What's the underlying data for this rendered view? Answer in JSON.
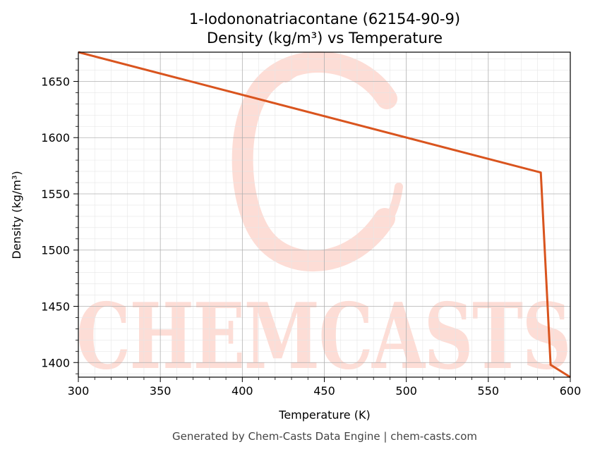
{
  "chart_data": {
    "type": "line",
    "title": "1-Iodononatriacontane (62154-90-9)",
    "subtitle": "Density (kg/m³) vs Temperature",
    "xlabel": "Temperature (K)",
    "ylabel": "Density (kg/m³)",
    "xlim": [
      300,
      600
    ],
    "ylim": [
      1387,
      1676
    ],
    "x_ticks": [
      300,
      350,
      400,
      450,
      500,
      550,
      600
    ],
    "y_ticks": [
      1400,
      1450,
      1500,
      1550,
      1600,
      1650
    ],
    "grid": true,
    "line_color": "#d9541e",
    "series": [
      {
        "x": [
          300,
          582,
          588,
          600
        ],
        "values": [
          1676,
          1569,
          1398,
          1387
        ]
      }
    ]
  },
  "watermark": {
    "text": "CHEMCASTS",
    "color": "#fdddd6"
  },
  "footer": "Generated by Chem-Casts Data Engine | chem-casts.com"
}
